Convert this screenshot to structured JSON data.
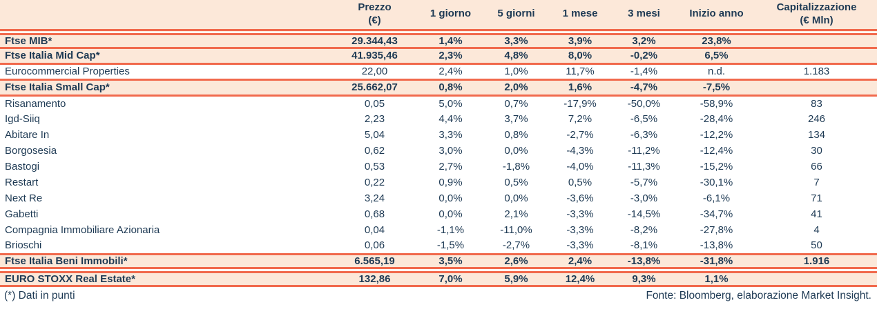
{
  "colors": {
    "band": "#fce8d9",
    "rule_line": "#f1694c",
    "text": "#1e3a54"
  },
  "table": {
    "columns": [
      "Prezzo\n(€)",
      "1 giorno",
      "5 giorni",
      "1 mese",
      "3 mesi",
      "Inizio anno",
      "Capitalizzazione\n(€ Mln)"
    ],
    "rows": [
      {
        "name": "Ftse MIB*",
        "type": "index",
        "values": [
          "29.344,43",
          "1,4%",
          "3,3%",
          "3,9%",
          "3,2%",
          "23,8%",
          ""
        ]
      },
      {
        "name": "Ftse Italia Mid Cap*",
        "type": "index",
        "values": [
          "41.935,46",
          "2,3%",
          "4,8%",
          "8,0%",
          "-0,2%",
          "6,5%",
          ""
        ]
      },
      {
        "name": "Eurocommercial Properties",
        "type": "stock",
        "values": [
          "22,00",
          "2,4%",
          "1,0%",
          "11,7%",
          "-1,4%",
          "n.d.",
          "1.183"
        ]
      },
      {
        "name": "Ftse Italia Small Cap*",
        "type": "index",
        "values": [
          "25.662,07",
          "0,8%",
          "2,0%",
          "1,6%",
          "-4,7%",
          "-7,5%",
          ""
        ]
      },
      {
        "name": "Risanamento",
        "type": "stock",
        "values": [
          "0,05",
          "5,0%",
          "0,7%",
          "-17,9%",
          "-50,0%",
          "-58,9%",
          "83"
        ]
      },
      {
        "name": "Igd-Siiq",
        "type": "stock",
        "values": [
          "2,23",
          "4,4%",
          "3,7%",
          "7,2%",
          "-6,5%",
          "-28,4%",
          "246"
        ]
      },
      {
        "name": "Abitare In",
        "type": "stock",
        "values": [
          "5,04",
          "3,3%",
          "0,8%",
          "-2,7%",
          "-6,3%",
          "-12,2%",
          "134"
        ]
      },
      {
        "name": "Borgosesia",
        "type": "stock",
        "values": [
          "0,62",
          "3,0%",
          "0,0%",
          "-4,3%",
          "-11,2%",
          "-12,4%",
          "30"
        ]
      },
      {
        "name": "Bastogi",
        "type": "stock",
        "values": [
          "0,53",
          "2,7%",
          "-1,8%",
          "-4,0%",
          "-11,3%",
          "-15,2%",
          "66"
        ]
      },
      {
        "name": "Restart",
        "type": "stock",
        "values": [
          "0,22",
          "0,9%",
          "0,5%",
          "0,5%",
          "-5,7%",
          "-30,1%",
          "7"
        ]
      },
      {
        "name": "Next Re",
        "type": "stock",
        "values": [
          "3,24",
          "0,0%",
          "0,0%",
          "-3,6%",
          "-3,0%",
          "-6,1%",
          "71"
        ]
      },
      {
        "name": "Gabetti",
        "type": "stock",
        "values": [
          "0,68",
          "0,0%",
          "2,1%",
          "-3,3%",
          "-14,5%",
          "-34,7%",
          "41"
        ]
      },
      {
        "name": "Compagnia Immobiliare Azionaria",
        "type": "stock",
        "values": [
          "0,04",
          "-1,1%",
          "-11,0%",
          "-3,3%",
          "-8,2%",
          "-27,8%",
          "4"
        ]
      },
      {
        "name": "Brioschi",
        "type": "stock",
        "values": [
          "0,06",
          "-1,5%",
          "-2,7%",
          "-3,3%",
          "-8,1%",
          "-13,8%",
          "50"
        ]
      },
      {
        "name": "Ftse Italia Beni Immobili*",
        "type": "index",
        "divider": "double",
        "values": [
          "6.565,19",
          "3,5%",
          "2,6%",
          "2,4%",
          "-13,8%",
          "-31,8%",
          "1.916"
        ]
      },
      {
        "name": "EURO STOXX Real Estate*",
        "type": "index",
        "values": [
          "132,86",
          "7,0%",
          "5,9%",
          "12,4%",
          "9,3%",
          "1,1%",
          ""
        ]
      }
    ],
    "footnote": "(*) Dati in punti",
    "source": "Fonte: Bloomberg, elaborazione Market Insight."
  }
}
